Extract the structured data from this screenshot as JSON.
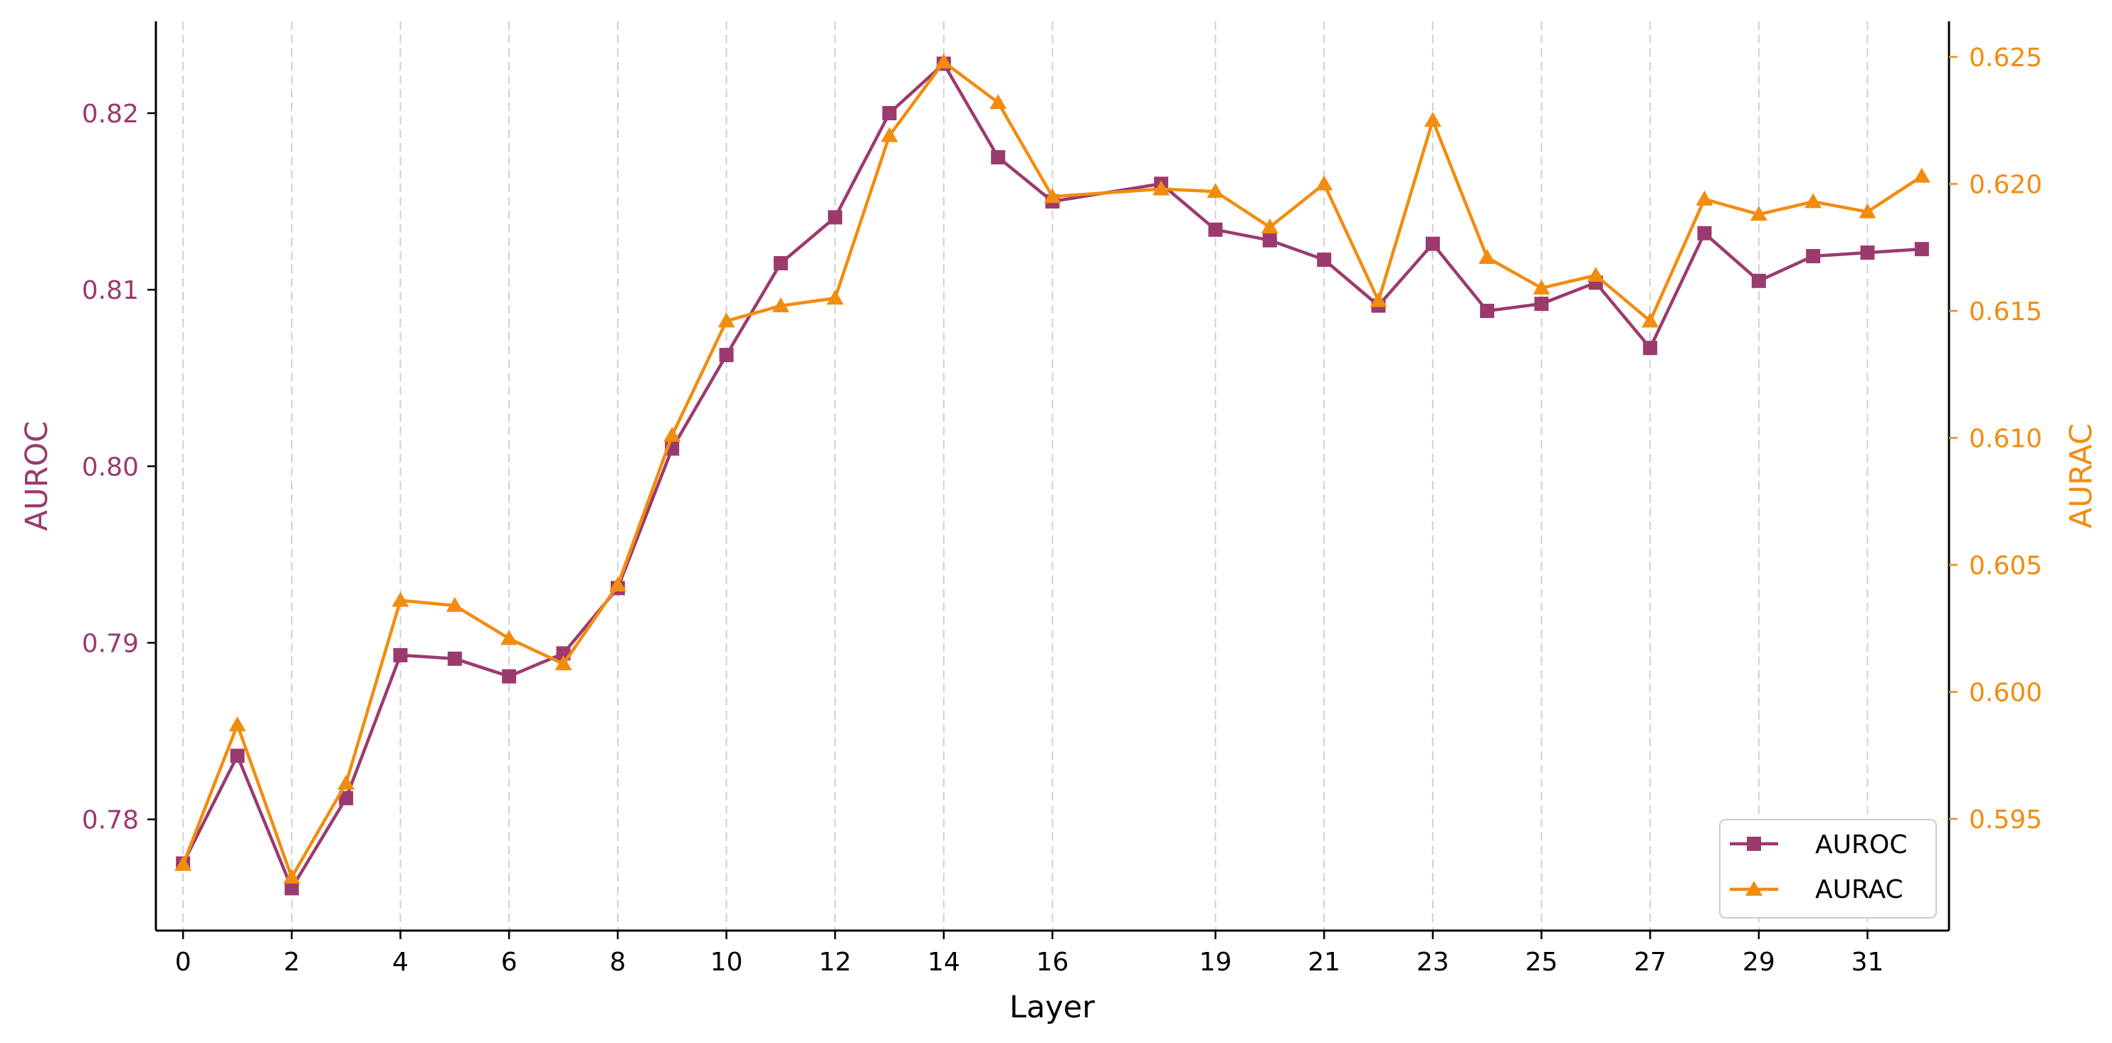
{
  "chart_data": {
    "type": "line",
    "title": "",
    "xlabel": "Layer",
    "ylabel_left": "AUROC",
    "ylabel_right": "AURAC",
    "x_tick_labels": [
      "0",
      "2",
      "4",
      "6",
      "8",
      "10",
      "12",
      "14",
      "16",
      "19",
      "21",
      "23",
      "25",
      "27",
      "29",
      "31"
    ],
    "x_ticks": [
      0,
      2,
      4,
      6,
      8,
      10,
      12,
      14,
      16,
      19,
      21,
      23,
      25,
      27,
      29,
      31
    ],
    "xlim": [
      -0.5,
      32.5
    ],
    "ylim_left": [
      0.7737,
      0.8252
    ],
    "ylim_right": [
      0.5906,
      0.6264
    ],
    "y_ticks_left": [
      "0.78",
      "0.79",
      "0.80",
      "0.81",
      "0.82"
    ],
    "y_ticks_right": [
      "0.595",
      "0.600",
      "0.605",
      "0.610",
      "0.615",
      "0.620",
      "0.625"
    ],
    "grid": "x-dashed",
    "legend_position": "bottom-right",
    "colors": {
      "auroc": "#9b3a6e",
      "aurac": "#f28c0f",
      "grid": "#cfcfcf",
      "axis": "#000000"
    },
    "series": [
      {
        "name": "AUROC",
        "axis": "left",
        "marker": "square",
        "x": [
          0,
          1,
          2,
          3,
          4,
          5,
          6,
          7,
          8,
          9,
          10,
          11,
          12,
          13,
          14,
          15,
          16,
          18,
          19,
          20,
          21,
          22,
          23,
          24,
          25,
          26,
          27,
          28,
          29,
          30,
          31,
          32
        ],
        "values": [
          0.7775,
          0.7836,
          0.7761,
          0.7812,
          0.7893,
          0.7891,
          0.7881,
          0.7894,
          0.7931,
          0.801,
          0.8063,
          0.8115,
          0.8141,
          0.82,
          0.8228,
          0.8175,
          0.815,
          0.816,
          0.8134,
          0.8128,
          0.8117,
          0.8091,
          0.8126,
          0.8088,
          0.8092,
          0.8104,
          0.8067,
          0.8132,
          0.8105,
          0.8119,
          0.8121,
          0.8123
        ]
      },
      {
        "name": "AURAC",
        "axis": "right",
        "marker": "triangle",
        "x": [
          0,
          1,
          2,
          3,
          4,
          5,
          6,
          7,
          8,
          9,
          10,
          11,
          12,
          13,
          14,
          15,
          16,
          18,
          19,
          20,
          21,
          22,
          23,
          24,
          25,
          26,
          27,
          28,
          29,
          30,
          31,
          32
        ],
        "values": [
          0.5932,
          0.5987,
          0.5927,
          0.5964,
          0.6036,
          0.6034,
          0.6021,
          0.6011,
          0.6042,
          0.6101,
          0.6146,
          0.6152,
          0.6155,
          0.6219,
          0.6248,
          0.6232,
          0.6195,
          0.6198,
          0.6197,
          0.6183,
          0.62,
          0.6154,
          0.6225,
          0.6171,
          0.6159,
          0.6164,
          0.6146,
          0.6194,
          0.6188,
          0.6193,
          0.6189,
          0.6203
        ]
      }
    ]
  }
}
